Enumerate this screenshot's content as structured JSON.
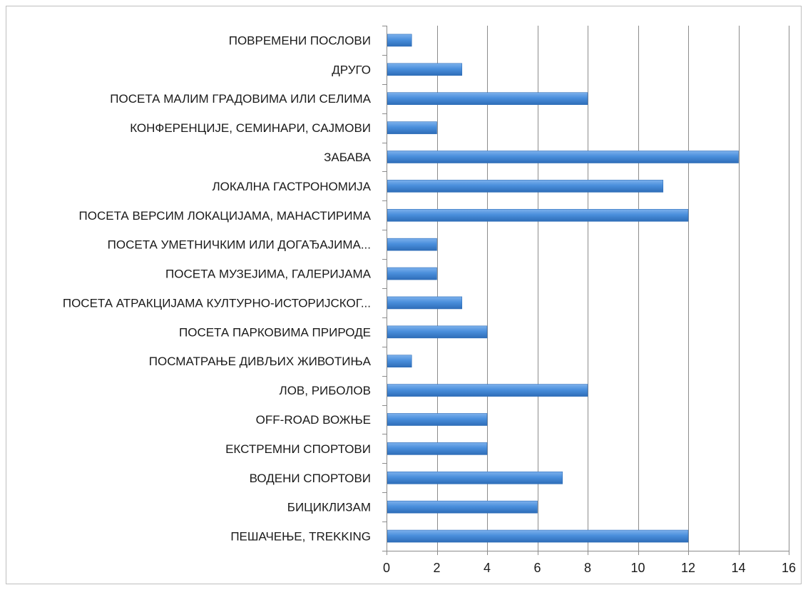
{
  "chart_data": {
    "type": "bar",
    "orientation": "horizontal",
    "title": "",
    "xlabel": "",
    "ylabel": "",
    "categories": [
      "ПОВРЕМЕНИ ПОСЛОВИ",
      "ДРУГО",
      "ПОСЕТА МАЛИМ ГРАДОВИМА ИЛИ СЕЛИМА",
      "КОНФЕРЕНЦИЈЕ, СЕМИНАРИ, САЈМОВИ",
      "ЗАБАВА",
      "ЛОКАЛНА ГАСТРОНОМИЈА",
      "ПОСЕТА ВЕРСИМ ЛОКАЦИЈАМА, МАНАСТИРИМА",
      "ПОСЕТА УМЕТНИЧКИМ ИЛИ ДОГАЂАЈИМА...",
      "ПОСЕТА МУЗЕЈИМА, ГАЛЕРИЈАМА",
      "ПОСЕТА АТРАКЦИЈАМА КУЛТУРНО-ИСТОРИЈСКОГ...",
      "ПОСЕТА ПАРКОВИМА ПРИРОДЕ",
      "ПОСМАТРАЊЕ ДИВЉИХ ЖИВОТИЊА",
      "ЛОВ, РИБОЛОВ",
      "OFF-ROAD ВОЖЊЕ",
      "ЕКСТРЕМНИ СПОРТОВИ",
      "ВОДЕНИ СПОРТОВИ",
      "БИЦИКЛИЗАМ",
      "ПЕШАЧЕЊЕ, TREKKING"
    ],
    "values": [
      1,
      3,
      8,
      2,
      14,
      11,
      12,
      2,
      2,
      3,
      4,
      1,
      8,
      4,
      4,
      7,
      6,
      12
    ],
    "xlim": [
      0,
      16
    ],
    "xticks": [
      0,
      2,
      4,
      6,
      8,
      10,
      12,
      14,
      16
    ],
    "grid": true,
    "legend": "none",
    "bar_color": "#4a8fdc",
    "bar_color_dark": "#2e6db8",
    "bar_color_light": "#7db1ec"
  }
}
